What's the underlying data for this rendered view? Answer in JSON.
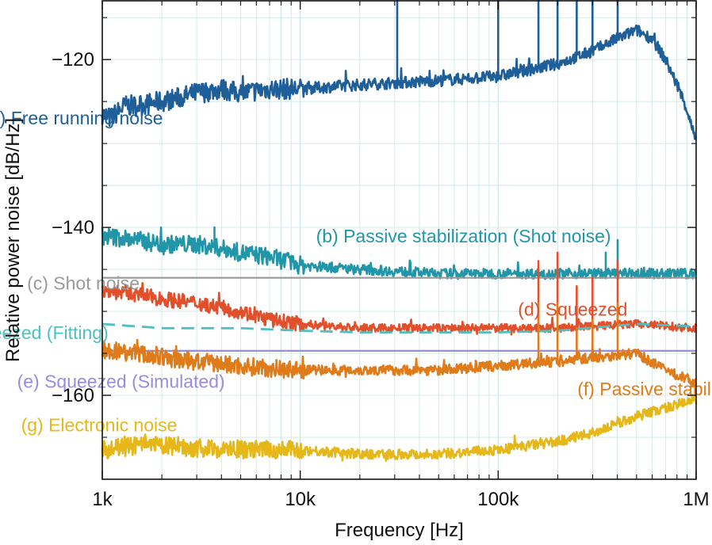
{
  "chart_data": {
    "type": "line",
    "xscale": "log",
    "xlabel": "Frequency [Hz]",
    "ylabel": "Relative power noise [dB/Hz]",
    "xlim": [
      1000,
      1000000
    ],
    "ylim": [
      -170,
      -113
    ],
    "x_ticks": [
      {
        "value": 1000,
        "label": "1k"
      },
      {
        "value": 10000,
        "label": "10k"
      },
      {
        "value": 100000,
        "label": "100k"
      },
      {
        "value": 1000000,
        "label": "1M"
      }
    ],
    "y_ticks": [
      {
        "value": -120,
        "label": "−120"
      },
      {
        "value": -140,
        "label": "−140"
      },
      {
        "value": -160,
        "label": "−160"
      }
    ],
    "grid": true,
    "series": [
      {
        "id": "a",
        "name": "(a) Free running noise",
        "color": "#1f5f99",
        "style": "solid",
        "noise": 0.7,
        "points": [
          [
            1000,
            -126.5
          ],
          [
            1100,
            -127
          ],
          [
            1300,
            -125.5
          ],
          [
            1500,
            -125.5
          ],
          [
            2000,
            -125
          ],
          [
            2500,
            -124.5
          ],
          [
            3000,
            -124
          ],
          [
            4000,
            -123.5
          ],
          [
            5000,
            -124
          ],
          [
            7000,
            -123.5
          ],
          [
            10000,
            -123.5
          ],
          [
            20000,
            -123
          ],
          [
            50000,
            -122.5
          ],
          [
            100000,
            -122
          ],
          [
            200000,
            -120.5
          ],
          [
            300000,
            -119
          ],
          [
            400000,
            -117.5
          ],
          [
            500000,
            -116.5
          ],
          [
            600000,
            -117.5
          ],
          [
            700000,
            -120
          ],
          [
            800000,
            -123
          ],
          [
            900000,
            -126
          ],
          [
            1000000,
            -130
          ]
        ],
        "spikes": [
          [
            31000,
            -113
          ],
          [
            100000,
            -108
          ],
          [
            160000,
            -108
          ],
          [
            200000,
            -108
          ],
          [
            250000,
            -108
          ],
          [
            300000,
            -108
          ],
          [
            400000,
            -108
          ]
        ],
        "label_pos": [
          2.4,
          -127.7
        ]
      },
      {
        "id": "b",
        "name": "(b) Passive stabilization (Shot noise)",
        "color": "#2196a8",
        "style": "solid",
        "noise": 0.6,
        "points": [
          [
            1000,
            -141
          ],
          [
            1500,
            -141.5
          ],
          [
            2000,
            -142
          ],
          [
            3000,
            -142
          ],
          [
            4000,
            -142.5
          ],
          [
            5000,
            -143
          ],
          [
            7000,
            -143.5
          ],
          [
            10000,
            -144.5
          ],
          [
            20000,
            -145
          ],
          [
            50000,
            -145.5
          ],
          [
            100000,
            -145.5
          ],
          [
            200000,
            -145.5
          ],
          [
            500000,
            -145.5
          ],
          [
            1000000,
            -145.5
          ]
        ],
        "spikes": [
          [
            3700,
            -140
          ],
          [
            350000,
            -143
          ],
          [
            400000,
            -141.5
          ]
        ],
        "label_pos": [
          4.08,
          -141.8
        ]
      },
      {
        "id": "c",
        "name": "(c) Shot noise",
        "color": "#999999",
        "style": "flat",
        "noise": 0,
        "points": [
          [
            1000,
            -146
          ],
          [
            1000000,
            -146
          ]
        ],
        "spikes": [],
        "label_pos": [
          2.62,
          -147.4
        ]
      },
      {
        "id": "d",
        "name": "(d) Squeezed",
        "color": "#e1502b",
        "style": "solid",
        "noise": 0.5,
        "points": [
          [
            1000,
            -147.5
          ],
          [
            1500,
            -148
          ],
          [
            2000,
            -148.5
          ],
          [
            3000,
            -149
          ],
          [
            5000,
            -150
          ],
          [
            7000,
            -151
          ],
          [
            10000,
            -151.5
          ],
          [
            20000,
            -152
          ],
          [
            50000,
            -152
          ],
          [
            100000,
            -152
          ],
          [
            200000,
            -152
          ],
          [
            500000,
            -151.5
          ],
          [
            1000000,
            -152
          ]
        ],
        "spikes": [
          [
            160000,
            -144
          ],
          [
            200000,
            -143
          ],
          [
            250000,
            -147
          ],
          [
            300000,
            -146
          ],
          [
            400000,
            -144
          ]
        ],
        "label_pos": [
          5.1,
          -150.5
        ]
      },
      {
        "id": "h",
        "name": "(h) Squeezed (Fitting)",
        "color": "#4fbfbf",
        "style": "dashed",
        "noise": 0,
        "points": [
          [
            1000,
            -151.5
          ],
          [
            2000,
            -152
          ],
          [
            3000,
            -152
          ],
          [
            5000,
            -152
          ],
          [
            10000,
            -152.3
          ],
          [
            20000,
            -152.5
          ],
          [
            50000,
            -152.5
          ],
          [
            100000,
            -152.5
          ],
          [
            200000,
            -152.3
          ],
          [
            500000,
            -151.5
          ],
          [
            1000000,
            -151.8
          ]
        ],
        "spikes": [],
        "label_pos": [
          2.14,
          -153.3
        ]
      },
      {
        "id": "e",
        "name": "(e) Squeezed (Simulated)",
        "color": "#9a8cdb",
        "style": "flat",
        "noise": 0,
        "points": [
          [
            1000,
            -154.7
          ],
          [
            1000000,
            -154.7
          ]
        ],
        "spikes": [],
        "label_pos": [
          2.57,
          -159.1
        ]
      },
      {
        "id": "f",
        "name": "(f) Passive stabilization",
        "color": "#e07b1a",
        "style": "solid",
        "noise": 0.6,
        "points": [
          [
            1000,
            -154.5
          ],
          [
            1500,
            -155
          ],
          [
            2000,
            -155.5
          ],
          [
            3000,
            -156
          ],
          [
            5000,
            -156.5
          ],
          [
            10000,
            -157
          ],
          [
            20000,
            -157
          ],
          [
            50000,
            -157
          ],
          [
            100000,
            -156.5
          ],
          [
            200000,
            -156
          ],
          [
            300000,
            -155.5
          ],
          [
            500000,
            -155
          ],
          [
            700000,
            -157
          ],
          [
            1000000,
            -158.5
          ]
        ],
        "spikes": [
          [
            160000,
            -149
          ],
          [
            200000,
            -149
          ],
          [
            250000,
            -152
          ],
          [
            300000,
            -151
          ],
          [
            400000,
            -149
          ]
        ],
        "label_pos": [
          5.4,
          -160
        ]
      },
      {
        "id": "g",
        "name": "(g) Electronic noise",
        "color": "#e6b719",
        "style": "solid",
        "noise": 0.6,
        "points": [
          [
            1000,
            -166.5
          ],
          [
            1500,
            -166
          ],
          [
            2000,
            -166
          ],
          [
            3000,
            -166.3
          ],
          [
            5000,
            -166.5
          ],
          [
            10000,
            -166.5
          ],
          [
            20000,
            -167
          ],
          [
            50000,
            -167
          ],
          [
            100000,
            -166.5
          ],
          [
            200000,
            -165.5
          ],
          [
            300000,
            -164.5
          ],
          [
            500000,
            -162.5
          ],
          [
            700000,
            -161.5
          ],
          [
            1000000,
            -160.5
          ]
        ],
        "spikes": [],
        "label_pos": [
          2.59,
          -164.3
        ]
      }
    ]
  }
}
